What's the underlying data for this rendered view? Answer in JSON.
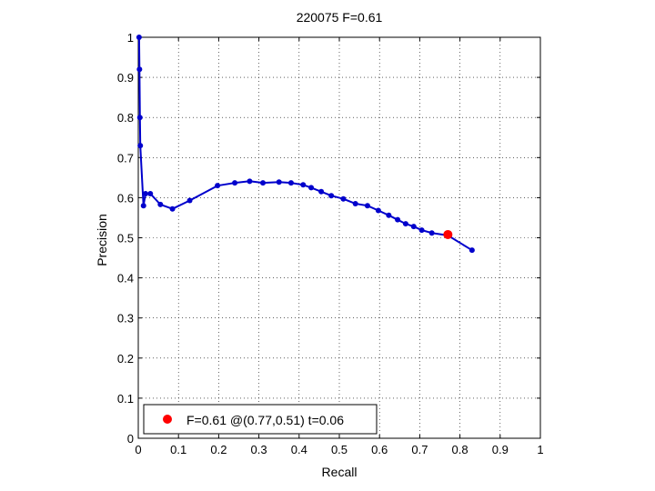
{
  "chart_data": {
    "type": "line",
    "title": "220075 F=0.61",
    "xlabel": "Recall",
    "ylabel": "Precision",
    "xlim": [
      0,
      1
    ],
    "ylim": [
      0,
      1
    ],
    "xticks": [
      0,
      0.1,
      0.2,
      0.3,
      0.4,
      0.5,
      0.6,
      0.7,
      0.8,
      0.9,
      1
    ],
    "yticks": [
      0,
      0.1,
      0.2,
      0.3,
      0.4,
      0.5,
      0.6,
      0.7,
      0.8,
      0.9,
      1
    ],
    "xtick_labels": [
      "0",
      "0.1",
      "0.2",
      "0.3",
      "0.4",
      "0.5",
      "0.6",
      "0.7",
      "0.8",
      "0.9",
      "1"
    ],
    "ytick_labels": [
      "0",
      "0.1",
      "0.2",
      "0.3",
      "0.4",
      "0.5",
      "0.6",
      "0.7",
      "0.8",
      "0.9",
      "1"
    ],
    "grid": true,
    "legend_position": "bottom-left",
    "series": [
      {
        "color": "#0000cc",
        "x": [
          0.002,
          0.003,
          0.004,
          0.005,
          0.013,
          0.018,
          0.03,
          0.055,
          0.085,
          0.128,
          0.197,
          0.24,
          0.277,
          0.31,
          0.35,
          0.38,
          0.41,
          0.43,
          0.455,
          0.48,
          0.51,
          0.54,
          0.57,
          0.597,
          0.623,
          0.645,
          0.665,
          0.685,
          0.705,
          0.73,
          0.77,
          0.83
        ],
        "y": [
          1.0,
          0.92,
          0.8,
          0.73,
          0.58,
          0.61,
          0.61,
          0.583,
          0.572,
          0.593,
          0.63,
          0.637,
          0.641,
          0.637,
          0.639,
          0.637,
          0.632,
          0.625,
          0.615,
          0.605,
          0.597,
          0.585,
          0.58,
          0.568,
          0.556,
          0.545,
          0.535,
          0.528,
          0.519,
          0.512,
          0.506,
          0.469
        ]
      }
    ],
    "highlight": {
      "x": 0.77,
      "y": 0.508,
      "color": "#ff0000"
    },
    "legend": {
      "label": "F=0.61 @(0.77,0.51) t=0.06",
      "marker_color": "#ff0000"
    }
  }
}
